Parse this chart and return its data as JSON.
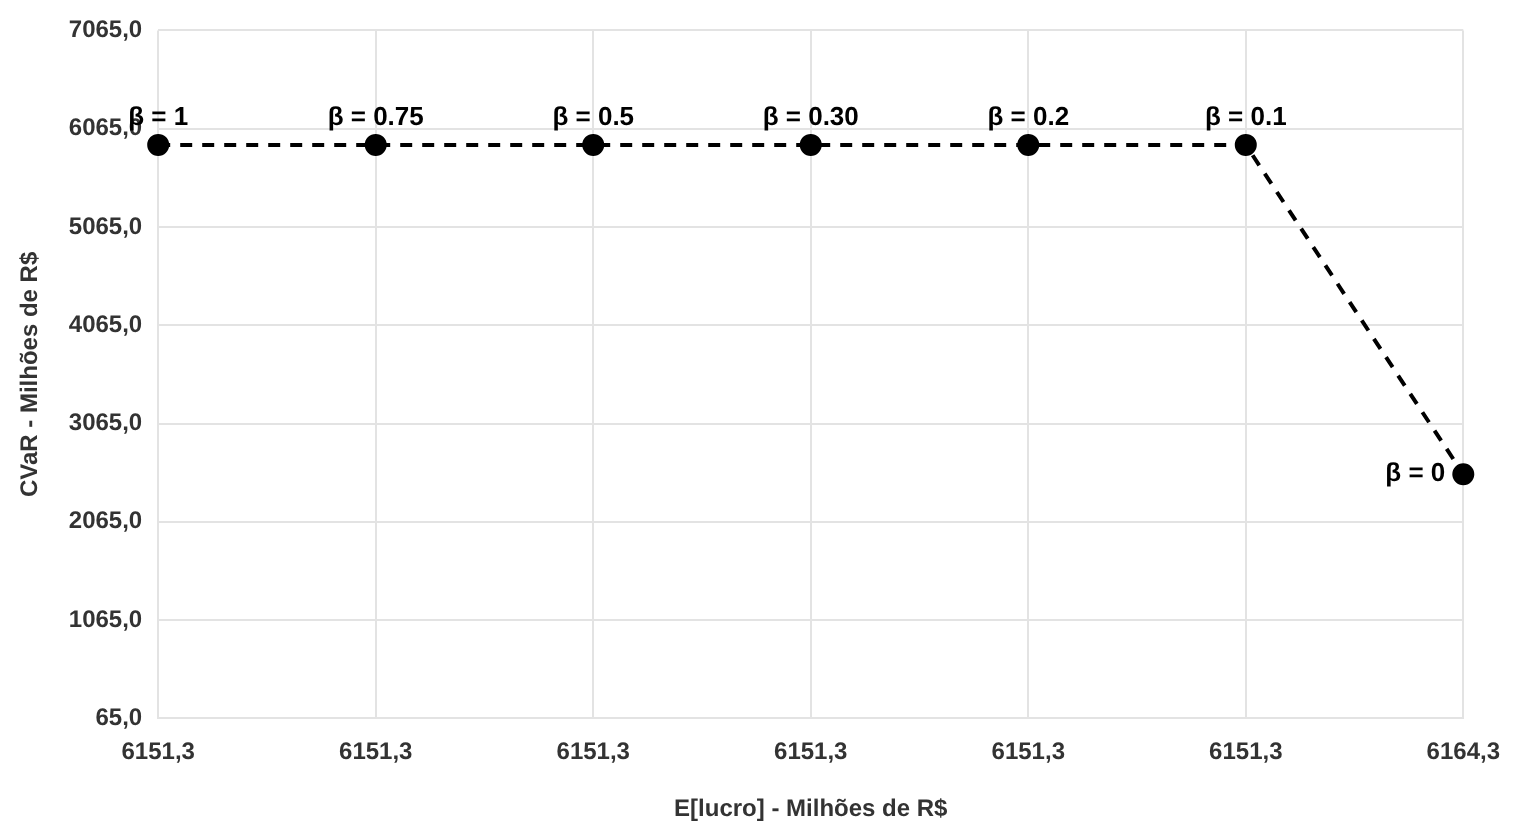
{
  "chart_data": {
    "type": "line",
    "xlabel": "E[lucro] - Milhões de R$",
    "ylabel": "CVaR - Milhões de R$",
    "categories": [
      "6151,3",
      "6151,3",
      "6151,3",
      "6151,3",
      "6151,3",
      "6151,3",
      "6164,3"
    ],
    "series": [
      {
        "color": "#000000",
        "values": [
          5900,
          5900,
          5900,
          5900,
          5900,
          5900,
          2550
        ]
      }
    ],
    "ylim": [
      65,
      7065
    ],
    "yticks": [
      {
        "value": 65,
        "label": "65,0"
      },
      {
        "value": 1065,
        "label": "1065,0"
      },
      {
        "value": 2065,
        "label": "2065,0"
      },
      {
        "value": 3065,
        "label": "3065,0"
      },
      {
        "value": 4065,
        "label": "4065,0"
      },
      {
        "value": 5065,
        "label": "5065,0"
      },
      {
        "value": 6065,
        "label": "6065,0"
      },
      {
        "value": 7065,
        "label": "7065,0"
      }
    ],
    "annotations": [
      "β = 1",
      "β = 0.75",
      "β = 0.5",
      "β = 0.30",
      "β = 0.2",
      "β = 0.1",
      "β = 0"
    ],
    "grid": true,
    "legend": false,
    "marker": "circle",
    "line_style": "dashed"
  }
}
